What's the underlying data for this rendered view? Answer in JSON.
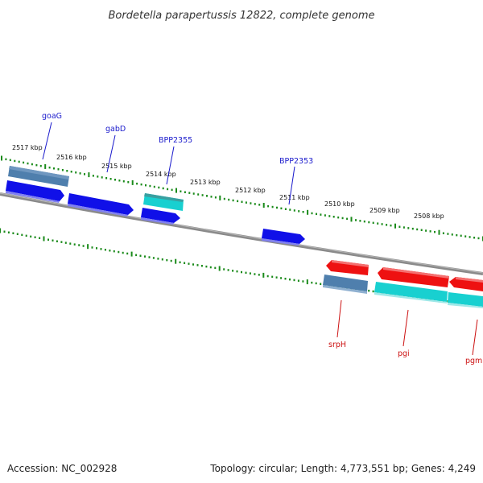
{
  "title": "Bordetella parapertussis 12822, complete genome",
  "footer": {
    "accession": "Accession: NC_002928",
    "summary": "Topology: circular; Length: 4,773,551 bp; Genes: 4,249"
  },
  "colors": {
    "backbone": "#7a7a7a",
    "tick": "#1a8a1a",
    "plus_label": "#1a1acc",
    "minus_label": "#cc1111",
    "cds_blue": "#1010e8",
    "gene_steel": "#4f7fad",
    "rna_cyan": "#18d0d0",
    "cds_red": "#ee1111"
  },
  "scale_labels": [
    {
      "text": "2517 kbp"
    },
    {
      "text": "2516 kbp"
    },
    {
      "text": "2515 kbp"
    },
    {
      "text": "2514 kbp"
    },
    {
      "text": "2513 kbp"
    },
    {
      "text": "2512 kbp"
    },
    {
      "text": "2511 kbp"
    },
    {
      "text": "2510 kbp"
    },
    {
      "text": "2509 kbp"
    },
    {
      "text": "2508 kbp"
    }
  ],
  "gene_labels": [
    {
      "text": "goaG",
      "strand": "plus"
    },
    {
      "text": "gabD",
      "strand": "plus"
    },
    {
      "text": "BPP2355",
      "strand": "plus"
    },
    {
      "text": "BPP2353",
      "strand": "plus"
    },
    {
      "text": "srpH",
      "strand": "minus"
    },
    {
      "text": "pgi",
      "strand": "minus"
    },
    {
      "text": "pgm",
      "strand": "minus"
    }
  ]
}
